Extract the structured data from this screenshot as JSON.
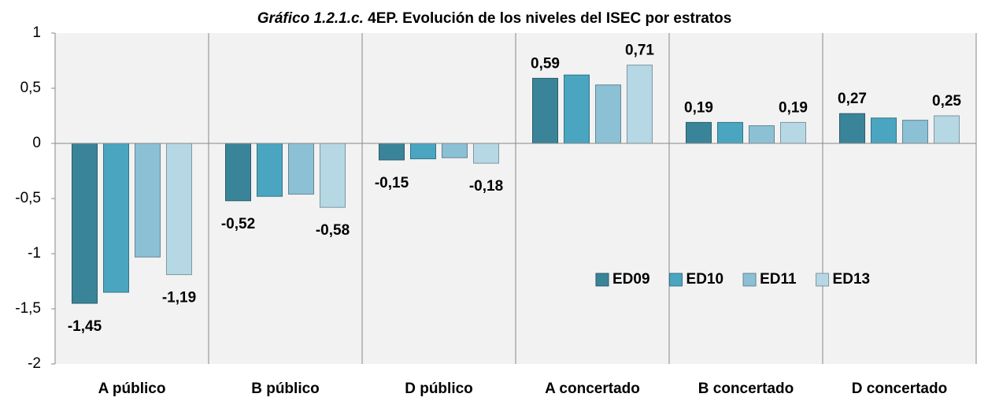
{
  "chart_data": {
    "type": "bar",
    "title": [
      "Gráfico 1.2.1.c.",
      "4EP. Evolución de los niveles del ISEC por estratos"
    ],
    "categories": [
      "A público",
      "B público",
      "D público",
      "A concertado",
      "B concertado",
      "D concertado"
    ],
    "series": [
      {
        "name": "ED09",
        "color": "#3a8499",
        "values": [
          -1.45,
          -0.52,
          -0.15,
          0.59,
          0.19,
          0.27
        ],
        "value_labels": [
          "-1,45",
          "-0,52",
          "-0,15",
          "0,59",
          "0,19",
          "0,27"
        ]
      },
      {
        "name": "ED10",
        "color": "#4aa5c0",
        "values": [
          -1.35,
          -0.48,
          -0.14,
          0.62,
          0.19,
          0.23
        ]
      },
      {
        "name": "ED11",
        "color": "#8cc0d4",
        "values": [
          -1.03,
          -0.46,
          -0.13,
          0.53,
          0.16,
          0.21
        ]
      },
      {
        "name": "ED13",
        "color": "#b5d8e4",
        "values": [
          -1.19,
          -0.58,
          -0.18,
          0.71,
          0.19,
          0.25
        ],
        "value_labels": [
          "-1,19",
          "-0,58",
          "-0,18",
          "0,71",
          "0,19",
          "0,25"
        ]
      }
    ],
    "ylim": [
      -2,
      1
    ],
    "yticks": [
      -2,
      {
        "value": -1.5,
        "label": "-1,5"
      },
      -1,
      {
        "value": -0.5,
        "label": "-0,5"
      },
      0,
      {
        "value": 0.5,
        "label": "0,5"
      },
      1
    ]
  }
}
